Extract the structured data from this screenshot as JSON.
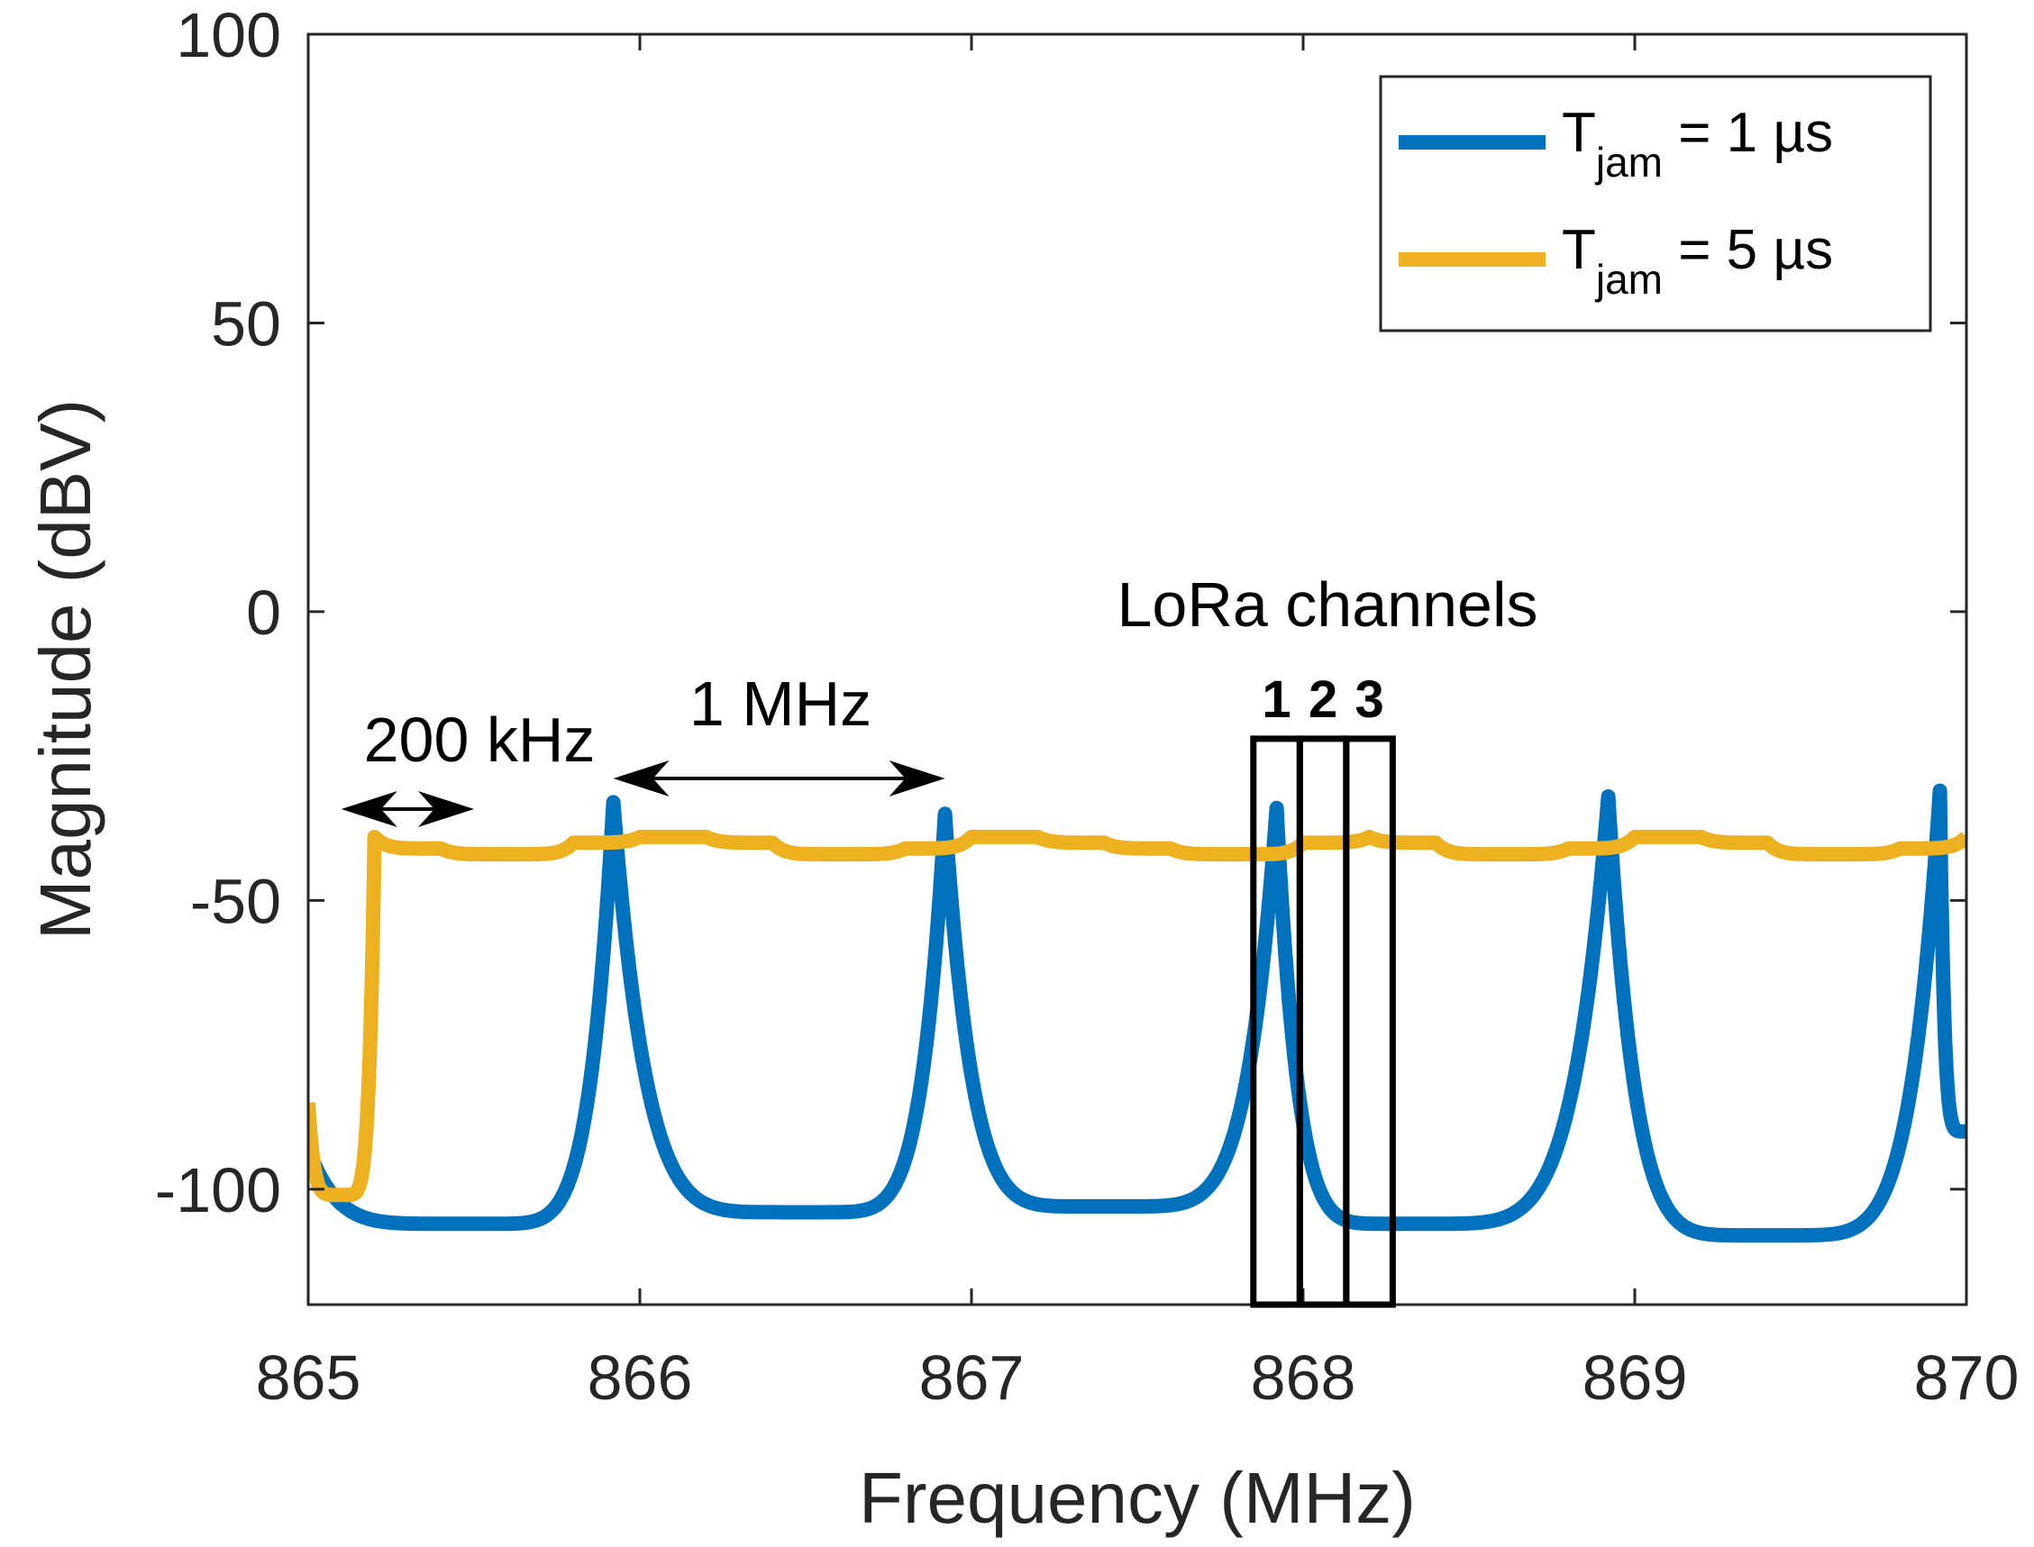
{
  "chart_data": {
    "type": "line",
    "title": "",
    "xlabel": "Frequency (MHz)",
    "ylabel": "Magnitude (dBV)",
    "xlim": [
      865,
      870
    ],
    "ylim": [
      -120,
      100
    ],
    "xticks": [
      "865",
      "866",
      "867",
      "868",
      "869",
      "870"
    ],
    "yticks": [
      "100",
      "50",
      "0",
      "-50",
      "-100"
    ],
    "grid": false,
    "legend_placement": "top-right",
    "legend": [
      {
        "prefix": "T",
        "sub": "jam",
        "suffix": " = 1 µs",
        "color": "#0072BD"
      },
      {
        "prefix": "T",
        "sub": "jam",
        "suffix": " = 5 µs",
        "color": "#EDB120"
      }
    ],
    "series": [
      {
        "color": "#0072BD",
        "peak_spacing_mhz": 1.0,
        "x": [
          865.0,
          865.5,
          865.92,
          866.5,
          866.92,
          867.4,
          867.92,
          868.3,
          868.92,
          869.4,
          869.92,
          870.0
        ],
        "values": [
          -93,
          -106,
          -33,
          -104,
          -35,
          -103,
          -34,
          -106,
          -32,
          -108,
          -31,
          -90
        ]
      },
      {
        "color": "#EDB120",
        "peak_spacing_mhz": 0.2,
        "x": [
          865.0,
          865.1,
          865.2,
          865.4,
          865.6,
          865.8,
          866.0,
          866.2,
          866.4,
          866.6,
          866.8,
          867.0,
          867.2,
          867.4,
          867.6,
          867.8,
          868.0,
          868.2,
          868.4,
          868.6,
          868.8,
          869.0,
          869.2,
          869.4,
          869.6,
          869.8,
          870.0
        ],
        "values": [
          -85,
          -101,
          -39,
          -41,
          -42,
          -40,
          -39,
          -39,
          -40,
          -42,
          -41,
          -39,
          -39,
          -40,
          -41,
          -42,
          -40,
          -39,
          -40,
          -42,
          -41,
          -39,
          -39,
          -40,
          -42,
          -41,
          -39
        ]
      }
    ],
    "annotations": {
      "lora_title": "LoRa channels",
      "channels": [
        {
          "label": "1",
          "x_start": 867.85,
          "x_end": 867.99
        },
        {
          "label": "2",
          "x_start": 867.99,
          "x_end": 868.13
        },
        {
          "label": "3",
          "x_start": 868.13,
          "x_end": 868.27
        }
      ],
      "span_200khz": {
        "label": "200 kHz",
        "x_start": 865.1,
        "x_end": 865.5
      },
      "span_1mhz": {
        "label": "1 MHz",
        "x_start": 865.92,
        "x_end": 866.92
      },
      "box_ylim": [
        -120,
        -22
      ]
    }
  }
}
